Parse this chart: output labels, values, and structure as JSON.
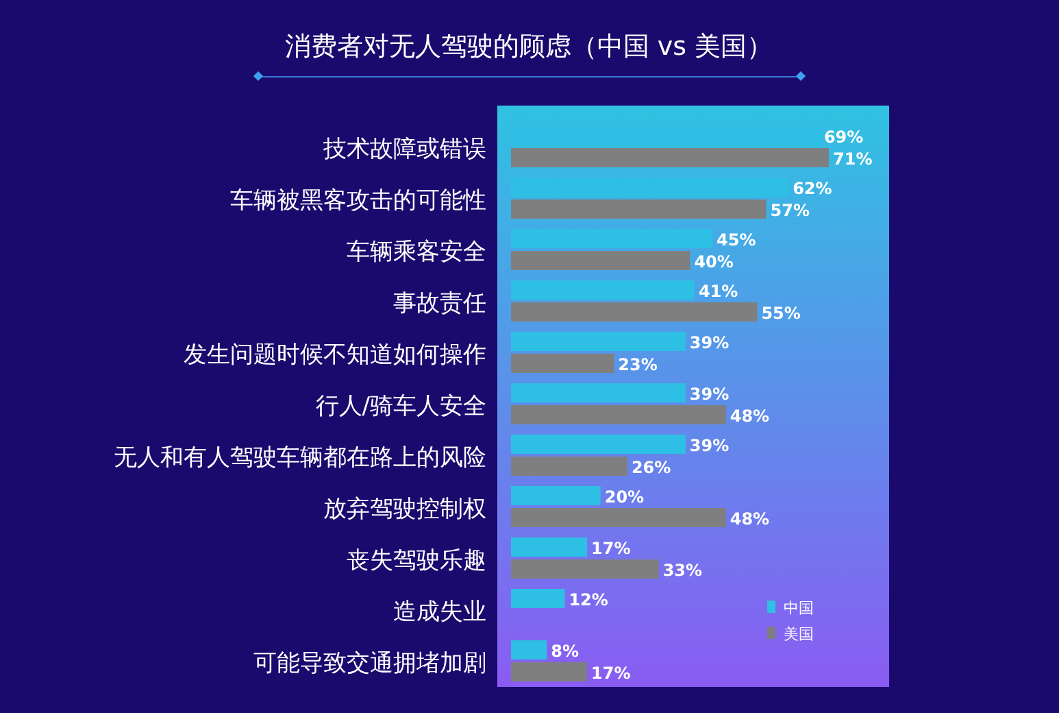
{
  "chart_data": {
    "type": "bar",
    "orientation": "horizontal",
    "title": "消费者对无人驾驶的顾虑（中国 vs 美国）",
    "categories": [
      "技术故障或错误",
      "车辆被黑客攻击的可能性",
      "车辆乘客安全",
      "事故责任",
      "发生问题时候不知道如何操作",
      "行人/骑车人安全",
      "无人和有人驾驶车辆都在路上的风险",
      "放弃驾驶控制权",
      "丧失驾驶乐趣",
      "造成失业",
      "可能导致交通拥堵加剧"
    ],
    "series": [
      {
        "name": "中国",
        "color": "#2ec0e4",
        "values": [
          69,
          62,
          45,
          41,
          39,
          39,
          39,
          20,
          17,
          12,
          8
        ],
        "value_labels": [
          "69%",
          "62%",
          "45%",
          "41%",
          "39%",
          "39%",
          "39%",
          "20%",
          "17%",
          "12%",
          "8%"
        ]
      },
      {
        "name": "美国",
        "color": "#7f7f7f",
        "values": [
          71,
          57,
          40,
          55,
          23,
          48,
          26,
          48,
          33,
          null,
          17
        ],
        "value_labels": [
          "71%",
          "57%",
          "40%",
          "55%",
          "23%",
          "48%",
          "26%",
          "48%",
          "33%",
          null,
          "17%"
        ]
      }
    ],
    "legend": "bottom right"
  }
}
